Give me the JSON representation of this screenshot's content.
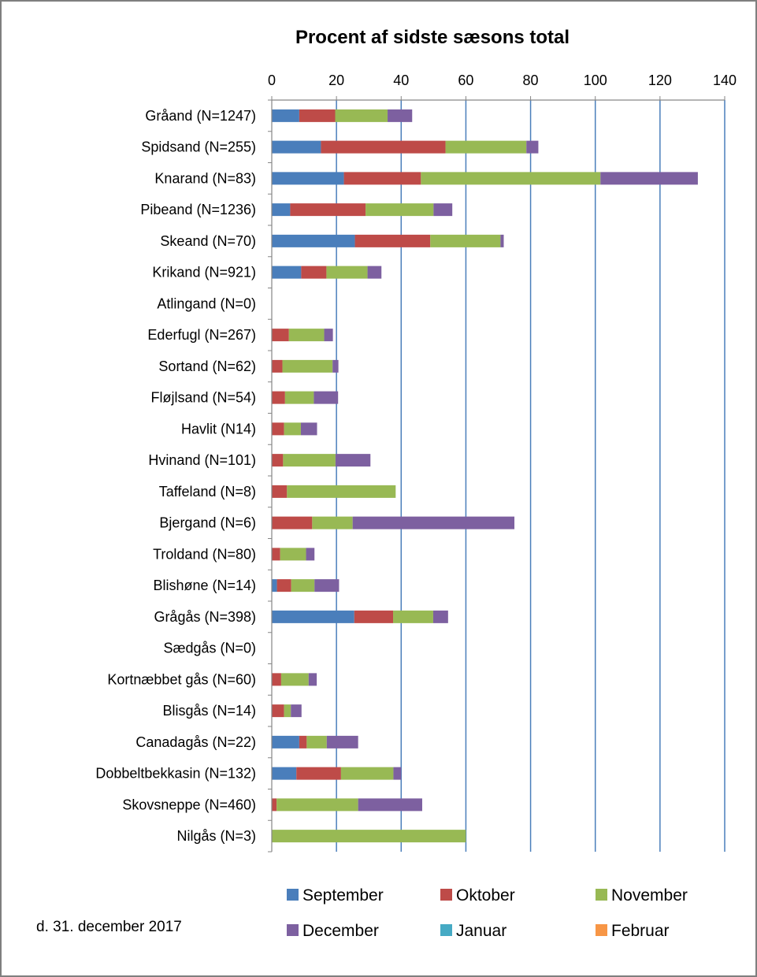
{
  "chart_data": {
    "type": "bar",
    "orientation": "horizontal",
    "stacked": true,
    "title": "Procent af sidste sæsons total",
    "xlim": [
      0,
      140
    ],
    "x_ticks": [
      "0",
      "20",
      "40",
      "60",
      "80",
      "100",
      "120",
      "140"
    ],
    "x_axis_position": "top",
    "grid": true,
    "legend_position": "bottom",
    "categories": [
      "Gråand (N=1247)",
      "Spidsand (N=255)",
      "Knarand (N=83)",
      "Pibeand (N=1236)",
      "Skeand (N=70)",
      "Krikand (N=921)",
      "Atlingand (N=0)",
      "Ederfugl (N=267)",
      "Sortand (N=62)",
      "Fløjlsand (N=54)",
      "Havlit (N14)",
      "Hvinand (N=101)",
      "Taffeland (N=8)",
      "Bjergand (N=6)",
      "Troldand (N=80)",
      "Blishøne (N=14)",
      "Grågås (N=398)",
      "Sædgås (N=0)",
      "Kortnæbbet gås (N=60)",
      "Blisgås (N=14)",
      "Canadagås (N=22)",
      "Dobbeltbekkasin (N=132)",
      "Skovsneppe (N=460)",
      "Nilgås (N=3)"
    ],
    "series": [
      {
        "name": "September",
        "color": "#4a7ebb",
        "values": [
          8.5,
          15.2,
          22.3,
          5.7,
          25.7,
          9.1,
          0,
          0,
          0,
          0,
          0,
          0,
          0,
          0,
          0,
          1.6,
          25.5,
          0,
          0,
          0,
          8.5,
          7.6,
          0,
          0
        ]
      },
      {
        "name": "Oktober",
        "color": "#be4b48",
        "values": [
          11.1,
          38.5,
          23.8,
          23.3,
          23.3,
          7.8,
          0,
          5.3,
          3.3,
          4.1,
          3.8,
          3.5,
          4.7,
          12.5,
          2.6,
          4.4,
          12.0,
          0,
          2.9,
          3.8,
          2.3,
          13.8,
          1.5,
          0
        ]
      },
      {
        "name": "November",
        "color": "#98b954",
        "values": [
          16.2,
          25.0,
          55.5,
          21.0,
          21.7,
          12.7,
          0,
          10.9,
          15.5,
          8.9,
          5.2,
          16.2,
          33.6,
          12.5,
          8.0,
          7.2,
          12.4,
          0,
          8.5,
          2.1,
          6.2,
          16.2,
          25.2,
          60.0
        ]
      },
      {
        "name": "December",
        "color": "#7d60a0",
        "values": [
          7.6,
          3.7,
          30.1,
          5.8,
          1.0,
          4.3,
          0,
          2.7,
          1.8,
          7.5,
          5.0,
          10.8,
          0,
          50.0,
          2.6,
          7.6,
          4.6,
          0,
          2.5,
          3.3,
          9.7,
          2.4,
          19.8,
          0
        ]
      },
      {
        "name": "Januar",
        "color": "#46aac4",
        "values": [
          0,
          0,
          0,
          0,
          0,
          0,
          0,
          0,
          0,
          0,
          0,
          0,
          0,
          0,
          0,
          0,
          0,
          0,
          0,
          0,
          0,
          0,
          0,
          0
        ]
      },
      {
        "name": "Februar",
        "color": "#f79646",
        "values": [
          0,
          0,
          0,
          0,
          0,
          0,
          0,
          0,
          0,
          0,
          0,
          0,
          0,
          0,
          0,
          0,
          0,
          0,
          0,
          0,
          0,
          0,
          0,
          0
        ]
      }
    ]
  },
  "footer": {
    "date_text": "d. 31. december  2017"
  }
}
